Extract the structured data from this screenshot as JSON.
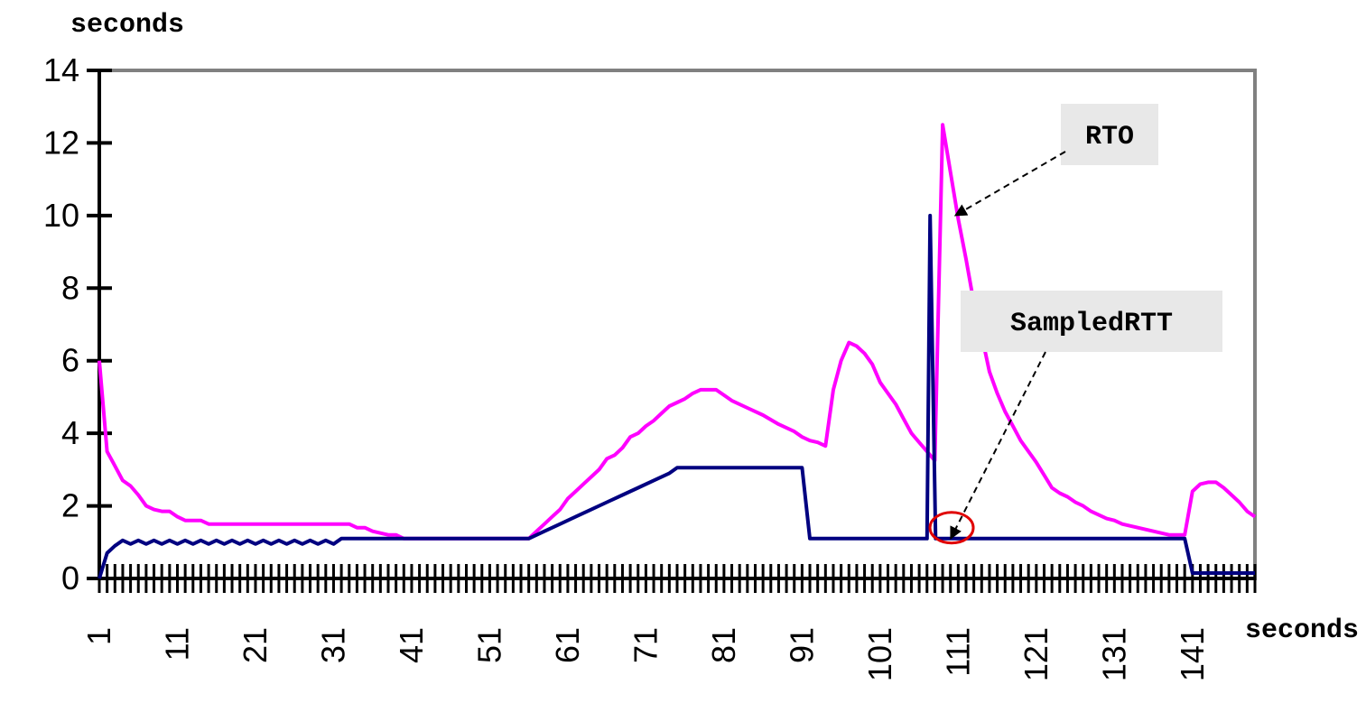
{
  "chart_data": {
    "type": "line",
    "ylabel": "seconds",
    "xlabel": "seconds",
    "ylim": [
      0,
      14
    ],
    "xlim": [
      1,
      149
    ],
    "yticks": [
      0,
      2,
      4,
      6,
      8,
      10,
      12,
      14
    ],
    "xticks": [
      1,
      11,
      21,
      31,
      41,
      51,
      61,
      71,
      81,
      91,
      101,
      111,
      121,
      131,
      141
    ],
    "grid": false,
    "series": [
      {
        "name": "RTO",
        "color": "#ff00ff",
        "points": [
          [
            1,
            6.0
          ],
          [
            2,
            3.5
          ],
          [
            3,
            3.1
          ],
          [
            4,
            2.7
          ],
          [
            5,
            2.55
          ],
          [
            6,
            2.3
          ],
          [
            7,
            2.0
          ],
          [
            8,
            1.9
          ],
          [
            9,
            1.85
          ],
          [
            10,
            1.85
          ],
          [
            11,
            1.7
          ],
          [
            12,
            1.6
          ],
          [
            13,
            1.6
          ],
          [
            14,
            1.6
          ],
          [
            15,
            1.5
          ],
          [
            20,
            1.5
          ],
          [
            25,
            1.5
          ],
          [
            30,
            1.5
          ],
          [
            33,
            1.5
          ],
          [
            34,
            1.4
          ],
          [
            35,
            1.4
          ],
          [
            36,
            1.3
          ],
          [
            38,
            1.2
          ],
          [
            39,
            1.2
          ],
          [
            40,
            1.1
          ],
          [
            45,
            1.1
          ],
          [
            50,
            1.1
          ],
          [
            56,
            1.1
          ],
          [
            57,
            1.3
          ],
          [
            58,
            1.5
          ],
          [
            59,
            1.7
          ],
          [
            60,
            1.9
          ],
          [
            61,
            2.2
          ],
          [
            62,
            2.4
          ],
          [
            63,
            2.6
          ],
          [
            64,
            2.8
          ],
          [
            65,
            3.0
          ],
          [
            66,
            3.3
          ],
          [
            67,
            3.4
          ],
          [
            68,
            3.6
          ],
          [
            69,
            3.9
          ],
          [
            70,
            4.0
          ],
          [
            71,
            4.2
          ],
          [
            72,
            4.35
          ],
          [
            73,
            4.55
          ],
          [
            74,
            4.75
          ],
          [
            75,
            4.85
          ],
          [
            76,
            4.95
          ],
          [
            77,
            5.1
          ],
          [
            78,
            5.2
          ],
          [
            79,
            5.2
          ],
          [
            80,
            5.2
          ],
          [
            81,
            5.05
          ],
          [
            82,
            4.9
          ],
          [
            84,
            4.7
          ],
          [
            86,
            4.5
          ],
          [
            88,
            4.25
          ],
          [
            90,
            4.05
          ],
          [
            91,
            3.9
          ],
          [
            92,
            3.8
          ],
          [
            93,
            3.75
          ],
          [
            94,
            3.65
          ],
          [
            95,
            5.2
          ],
          [
            96,
            6.0
          ],
          [
            97,
            6.5
          ],
          [
            98,
            6.4
          ],
          [
            99,
            6.2
          ],
          [
            100,
            5.9
          ],
          [
            101,
            5.4
          ],
          [
            102,
            5.1
          ],
          [
            103,
            4.8
          ],
          [
            104,
            4.4
          ],
          [
            105,
            4.0
          ],
          [
            106,
            3.75
          ],
          [
            107,
            3.5
          ],
          [
            108,
            3.25
          ],
          [
            109,
            12.5
          ],
          [
            110,
            11.2
          ],
          [
            111,
            9.9
          ],
          [
            112,
            8.8
          ],
          [
            113,
            7.6
          ],
          [
            114,
            6.7
          ],
          [
            115,
            5.7
          ],
          [
            116,
            5.1
          ],
          [
            117,
            4.6
          ],
          [
            118,
            4.2
          ],
          [
            119,
            3.8
          ],
          [
            120,
            3.5
          ],
          [
            121,
            3.2
          ],
          [
            122,
            2.85
          ],
          [
            123,
            2.5
          ],
          [
            124,
            2.35
          ],
          [
            125,
            2.25
          ],
          [
            126,
            2.1
          ],
          [
            127,
            2.0
          ],
          [
            128,
            1.85
          ],
          [
            129,
            1.75
          ],
          [
            130,
            1.65
          ],
          [
            131,
            1.6
          ],
          [
            132,
            1.5
          ],
          [
            133,
            1.45
          ],
          [
            134,
            1.4
          ],
          [
            135,
            1.35
          ],
          [
            136,
            1.3
          ],
          [
            137,
            1.25
          ],
          [
            138,
            1.2
          ],
          [
            139,
            1.2
          ],
          [
            140,
            1.2
          ],
          [
            141,
            2.4
          ],
          [
            142,
            2.6
          ],
          [
            143,
            2.65
          ],
          [
            144,
            2.65
          ],
          [
            145,
            2.5
          ],
          [
            146,
            2.3
          ],
          [
            147,
            2.1
          ],
          [
            148,
            1.85
          ],
          [
            149,
            1.7
          ]
        ]
      },
      {
        "name": "SampledRTT",
        "color": "#000080",
        "points": [
          [
            1,
            0.0
          ],
          [
            2,
            0.7
          ],
          [
            3,
            0.9
          ],
          [
            4,
            1.05
          ],
          [
            5,
            0.95
          ],
          [
            6,
            1.05
          ],
          [
            7,
            0.95
          ],
          [
            8,
            1.05
          ],
          [
            9,
            0.95
          ],
          [
            10,
            1.05
          ],
          [
            11,
            0.95
          ],
          [
            12,
            1.05
          ],
          [
            13,
            0.95
          ],
          [
            14,
            1.05
          ],
          [
            15,
            0.95
          ],
          [
            16,
            1.05
          ],
          [
            17,
            0.95
          ],
          [
            18,
            1.05
          ],
          [
            19,
            0.95
          ],
          [
            20,
            1.05
          ],
          [
            21,
            0.95
          ],
          [
            22,
            1.05
          ],
          [
            23,
            0.95
          ],
          [
            24,
            1.05
          ],
          [
            25,
            0.95
          ],
          [
            26,
            1.05
          ],
          [
            27,
            0.95
          ],
          [
            28,
            1.05
          ],
          [
            29,
            0.95
          ],
          [
            30,
            1.05
          ],
          [
            31,
            0.95
          ],
          [
            32,
            1.1
          ],
          [
            40,
            1.1
          ],
          [
            50,
            1.1
          ],
          [
            56,
            1.1
          ],
          [
            58,
            1.3
          ],
          [
            60,
            1.5
          ],
          [
            62,
            1.7
          ],
          [
            64,
            1.9
          ],
          [
            66,
            2.1
          ],
          [
            68,
            2.3
          ],
          [
            70,
            2.5
          ],
          [
            72,
            2.7
          ],
          [
            74,
            2.9
          ],
          [
            75,
            3.05
          ],
          [
            80,
            3.05
          ],
          [
            85,
            3.05
          ],
          [
            90,
            3.05
          ],
          [
            91,
            3.05
          ],
          [
            92,
            1.1
          ],
          [
            100,
            1.1
          ],
          [
            107,
            1.1
          ],
          [
            107.4,
            10.0
          ],
          [
            108.1,
            1.1
          ],
          [
            110,
            1.1
          ],
          [
            120,
            1.1
          ],
          [
            130,
            1.1
          ],
          [
            139,
            1.1
          ],
          [
            140,
            1.1
          ],
          [
            141,
            0.15
          ],
          [
            145,
            0.15
          ],
          [
            149,
            0.15
          ]
        ]
      }
    ],
    "annotations": [
      {
        "text": "RTO",
        "target": [
          110.5,
          10.0
        ]
      },
      {
        "text": "SampledRTT",
        "target": [
          110.5,
          1.3
        ]
      }
    ]
  }
}
